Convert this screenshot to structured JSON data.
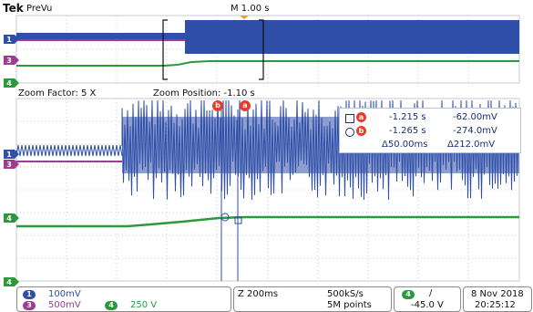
{
  "header": {
    "brand": "Tek",
    "mode": "PreVu",
    "timebase": "M 1.00 s"
  },
  "zoom": {
    "factor": "Zoom Factor: 5 X",
    "position": "Zoom Position: -1.10 s"
  },
  "channels": {
    "ch1": "1",
    "ch3": "3",
    "ch4": "4"
  },
  "cursors": {
    "a_label": "a",
    "b_label": "b",
    "a_time": "-1.215 s",
    "a_volt": "-62.00mV",
    "b_time": "-1.265 s",
    "b_volt": "-274.0mV",
    "delta_time": "Δ50.00ms",
    "delta_volt": "Δ212.0mV"
  },
  "status": {
    "ch1_scale": "100mV",
    "ch3_scale": "500mV",
    "ch4_scale": "250 V",
    "zoom_scale": "Z 200ms",
    "sample_rate": "500kS/s",
    "record_length": "5M points",
    "trig_channel": "4",
    "trig_slope": "/",
    "trig_level": "-45.0 V",
    "date": "8 Nov 2018",
    "time": "20:25:12"
  },
  "colors": {
    "ch1": "#2f4fa8",
    "ch3": "#9c3d8f",
    "ch4": "#2a9a3a",
    "cursor": "#e83b2a",
    "grid": "#c6cbd3"
  }
}
